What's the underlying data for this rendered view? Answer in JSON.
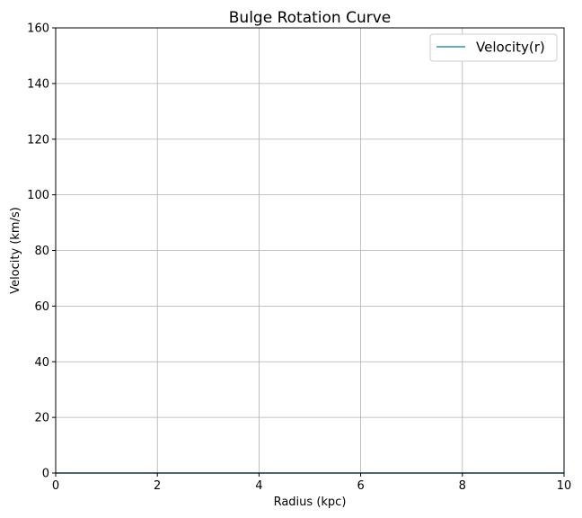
{
  "chart_data": {
    "type": "line",
    "title": "Bulge Rotation Curve",
    "xlabel": "Radius (kpc)",
    "ylabel": "Velocity (km/s)",
    "xlim": [
      0,
      10
    ],
    "ylim": [
      0,
      160
    ],
    "xticks": [
      0,
      2,
      4,
      6,
      8,
      10
    ],
    "yticks": [
      0,
      20,
      40,
      60,
      80,
      100,
      120,
      140,
      160
    ],
    "grid": true,
    "legend_position": "top-right",
    "series": [
      {
        "name": "Velocity(r)",
        "color": "#3a8fa8",
        "x": [
          0,
          2,
          4,
          6,
          8,
          10
        ],
        "y": [
          0,
          0,
          0,
          0,
          0,
          0
        ]
      }
    ]
  }
}
